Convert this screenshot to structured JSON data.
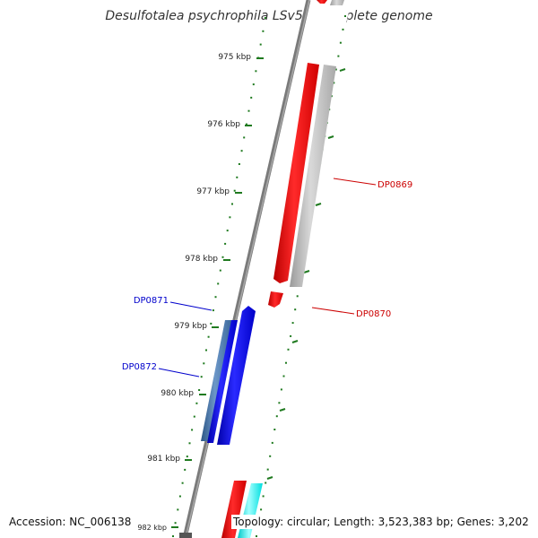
{
  "title": "Desulfotalea psychrophila LSv54, complete genome",
  "footer": {
    "accession_label": "Accession:",
    "accession": "NC_006138",
    "topology_label": "Topology:",
    "topology": "circular",
    "length_label": "Length:",
    "length": "3,523,383 bp",
    "genes_label": "Genes:",
    "genes": "3,202"
  },
  "colors": {
    "backbone": "#7a7a7a",
    "ticks": "#1f7a1f",
    "forward_red": "#ff0000",
    "forward_gray": "#bdbdbd",
    "reverse_blue": "#0000ff",
    "reverse_steel": "#4a77a8",
    "cyan": "#00ffff",
    "label_red": "#cc0000",
    "label_blue": "#0000cc"
  },
  "chart_data": {
    "type": "genome_map",
    "unit": "kbp",
    "tick_labels": [
      "975 kbp",
      "976 kbp",
      "977 kbp",
      "978 kbp",
      "979 kbp",
      "980 kbp",
      "981 kbp",
      "982 kbp"
    ],
    "genes": [
      {
        "label": "DP0869",
        "strand": "forward",
        "color": "forward_gray",
        "labeled": true
      },
      {
        "label": "DP0870",
        "strand": "forward",
        "color": "forward_red",
        "labeled": true
      },
      {
        "label": "DP0871",
        "strand": "reverse",
        "color": "reverse_blue",
        "labeled": true
      },
      {
        "label": "DP0872",
        "strand": "reverse",
        "color": "reverse_steel",
        "labeled": true
      },
      {
        "label": "",
        "strand": "forward",
        "color": "forward_red",
        "labeled": false
      },
      {
        "label": "",
        "strand": "forward",
        "color": "cyan",
        "labeled": false
      }
    ]
  }
}
